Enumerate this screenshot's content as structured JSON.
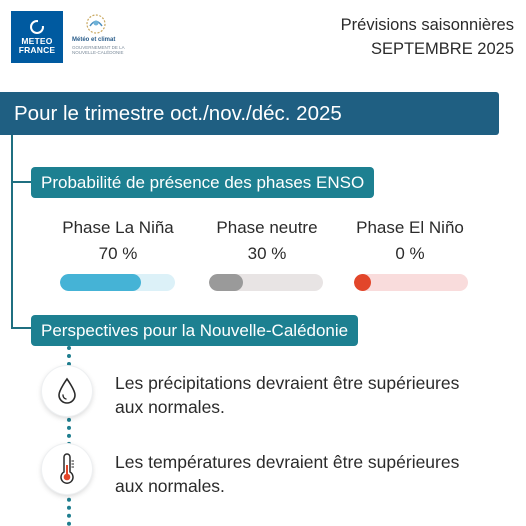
{
  "header": {
    "logo_line1": "METEO",
    "logo_line2": "FRANCE",
    "partner_name": "Météo et climat",
    "partner_sub": "Gouvernement de la Nouvelle-Calédonie",
    "title_line1": "Prévisions saisonnières",
    "title_line2": "SEPTEMBRE 2025"
  },
  "banner": {
    "label": "Pour le trimestre oct./nov./déc. 2025"
  },
  "enso": {
    "heading": "Probabilité de présence des phases ENSO",
    "phases": [
      {
        "name": "Phase La Niña",
        "percent_label": "70 %",
        "value": 0.7,
        "color": "#45b3d6",
        "track": "#dcf1f8"
      },
      {
        "name": "Phase neutre",
        "percent_label": "30 %",
        "value": 0.3,
        "color": "#9a9a9a",
        "track": "#e8e4e4"
      },
      {
        "name": "Phase El Niño",
        "percent_label": "0 %",
        "value": 0.0,
        "color": "#e2462a",
        "track": "#f9dcdc"
      }
    ]
  },
  "outlook": {
    "heading": "Perspectives pour la Nouvelle-Calédonie",
    "items": [
      {
        "icon": "rain-drop-icon",
        "text_line1": "Les précipitations devraient être supérieures",
        "text_line2": "aux normales."
      },
      {
        "icon": "thermometer-icon",
        "text_line1": "Les températures devraient être supérieures",
        "text_line2": "aux normales."
      }
    ]
  },
  "colors": {
    "banner": "#1f5f82",
    "pill": "#1d8091",
    "line": "#1f6f80"
  }
}
